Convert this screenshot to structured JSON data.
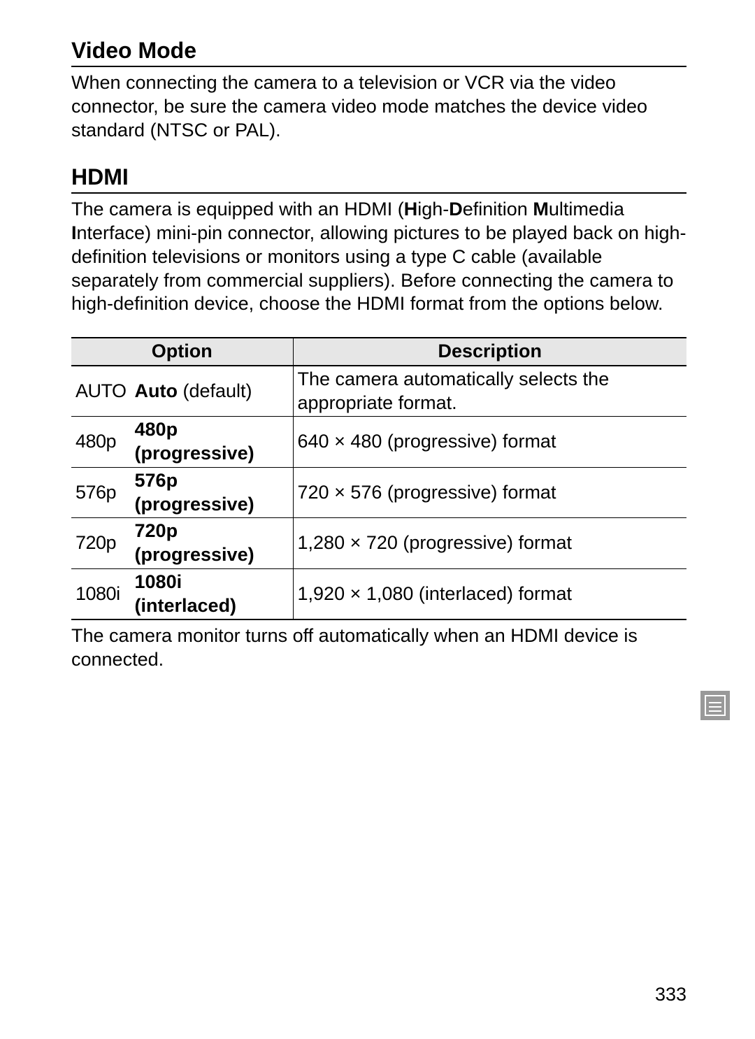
{
  "page_number": "333",
  "colors": {
    "background": "#ffffff",
    "text": "#000000",
    "rule": "#000000",
    "table_header_bg": "#e6e6e6",
    "tab_icon_bg": "#999999",
    "tab_icon_fg": "#ffffff"
  },
  "typography": {
    "body_fontsize_pt": 20,
    "heading_fontsize_pt": 24,
    "table_fontsize_pt": 20,
    "icon_font_family": "Arial Narrow"
  },
  "sections": {
    "video_mode": {
      "title": "Video Mode",
      "body": "When connecting the camera to a television or VCR via the video connector, be sure the camera video mode matches the device video standard (NTSC or PAL)."
    },
    "hdmi": {
      "title": "HDMI",
      "intro_parts": {
        "p1": "The camera is equipped with an HDMI (",
        "h": "H",
        "p2": "igh-",
        "d": "D",
        "p3": "efinition ",
        "m": "M",
        "p4": "ultimedia ",
        "i": "I",
        "p5": "nterface) mini-pin connector, allowing pictures to be played back on high-definition televisions or monitors using a type C cable (available separately from commercial suppliers). Before connecting the camera to high-definition device, choose the HDMI format from the options below."
      },
      "table": {
        "headers": {
          "option": "Option",
          "description": "Description"
        },
        "rows": [
          {
            "icon": "AUTO",
            "option": "Auto",
            "suffix": " (default)",
            "description": "The camera automatically selects the appropriate format."
          },
          {
            "icon": "480p",
            "option": "480p (progressive)",
            "suffix": "",
            "description": "640 × 480 (progressive) format"
          },
          {
            "icon": "576p",
            "option": "576p (progressive)",
            "suffix": "",
            "description": "720 × 576 (progressive) format"
          },
          {
            "icon": "720p",
            "option": "720p (progressive)",
            "suffix": "",
            "description": "1,280 × 720 (progressive) format"
          },
          {
            "icon": "1080i",
            "option": "1080i (interlaced)",
            "suffix": "",
            "description": "1,920 × 1,080 (interlaced) format"
          }
        ]
      },
      "after_table": "The camera monitor turns off automatically when an HDMI device is connected."
    }
  }
}
